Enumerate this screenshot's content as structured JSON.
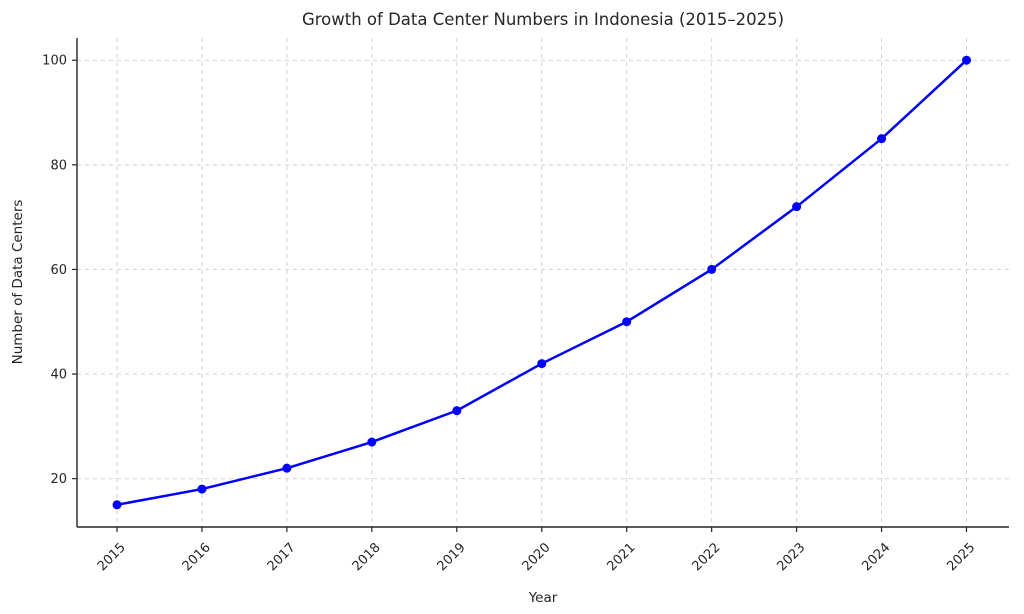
{
  "chart_data": {
    "type": "line",
    "title": "Growth of Data Center Numbers in Indonesia (2015–2025)",
    "xlabel": "Year",
    "ylabel": "Number of Data Centers",
    "categories": [
      2015,
      2016,
      2017,
      2018,
      2019,
      2020,
      2021,
      2022,
      2023,
      2024,
      2025
    ],
    "series": [
      {
        "name": "Data Centers",
        "values": [
          15,
          18,
          22,
          27,
          33,
          42,
          50,
          60,
          72,
          85,
          100
        ]
      }
    ],
    "yticks": [
      20,
      40,
      60,
      80,
      100
    ],
    "ylim": [
      10.75,
      104.25
    ],
    "grid": "dashed",
    "legend": "none",
    "colors": {
      "line": "#0000ff",
      "marker": "#0000ff",
      "grid": "#d2d2d2",
      "spine": "#262626",
      "text": "#262626",
      "background": "#ffffff"
    },
    "x_tick_rotation_deg": 45
  }
}
